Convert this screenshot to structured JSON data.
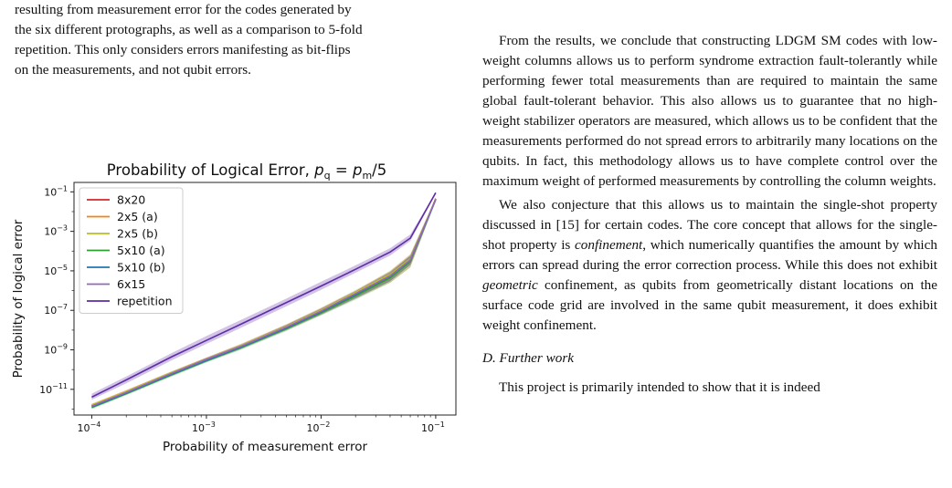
{
  "left_column": {
    "lines": [
      "resulting from measurement error for the codes generated by",
      "the six different protographs, as well as a comparison to 5-fold",
      "repetition. This only considers errors manifesting as bit-flips",
      "on the measurements, and not qubit errors."
    ]
  },
  "right_column": {
    "p1": "From the results, we conclude that constructing LDGM SM codes with low-weight columns allows us to perform syndrome extraction fault-tolerantly while performing fewer total measurements than are required to maintain the same global fault-tolerant behavior. This also allows us to guarantee that no high-weight stabilizer operators are measured, which allows us to be confident that the measurements performed do not spread errors to arbitrarily many locations on the qubits. In fact, this methodology allows us to have complete control over the maximum weight of performed measurements by controlling the column weights.",
    "p2_a": "We also conjecture that this allows us to maintain the single-shot property discussed in [15] for certain codes. The core concept that allows for the single-shot property is ",
    "p2_em1": "confinement",
    "p2_b": ", which numerically quantifies the amount by which errors can spread during the error correction process. While this does not exhibit ",
    "p2_em2": "geometric",
    "p2_c": " confinement, as qubits from geometrically distant locations on the surface code grid are involved in the same qubit measurement, it does exhibit weight confinement.",
    "subsection": "D.  Further work",
    "p3": "This project is primarily intended to show that it is indeed"
  },
  "chart_data": {
    "type": "line",
    "title_prefix": "Probability of Logical Error, ",
    "title_math": "p",
    "title_sub1": "q",
    "title_eq": " = ",
    "title_sub2": "m",
    "title_suffix": "/5",
    "xlabel": "Probability of measurement error",
    "ylabel": "Probability of logical error",
    "xscale": "log",
    "yscale": "log",
    "xlim": [
      7e-05,
      0.15
    ],
    "ylim": [
      5e-13,
      0.3
    ],
    "xticks": [
      {
        "value": 0.0001,
        "base": "10",
        "exp": "−4"
      },
      {
        "value": 0.001,
        "base": "10",
        "exp": "−3"
      },
      {
        "value": 0.01,
        "base": "10",
        "exp": "−2"
      },
      {
        "value": 0.1,
        "base": "10",
        "exp": "−1"
      }
    ],
    "yticks": [
      {
        "value": 1e-11,
        "base": "10",
        "exp": "−11"
      },
      {
        "value": 1e-09,
        "base": "10",
        "exp": "−9"
      },
      {
        "value": 1e-07,
        "base": "10",
        "exp": "−7"
      },
      {
        "value": 1e-05,
        "base": "10",
        "exp": "−5"
      },
      {
        "value": 0.001,
        "base": "10",
        "exp": "−3"
      },
      {
        "value": 0.1,
        "base": "10",
        "exp": "−1"
      }
    ],
    "legend_position": "top-left",
    "x": [
      0.0001,
      0.0002,
      0.0005,
      0.001,
      0.002,
      0.005,
      0.01,
      0.02,
      0.04,
      0.06,
      0.1
    ],
    "series": [
      {
        "name": "8x20",
        "color": "#d62728",
        "values": [
          1.5e-12,
          7e-12,
          6e-11,
          3e-10,
          1.4e-09,
          1.3e-08,
          8e-08,
          6e-07,
          5e-06,
          3e-05,
          0.045
        ],
        "band_low": [
          1.3e-12,
          6e-12,
          5e-11,
          2.5e-10,
          1.1e-09,
          1e-08,
          6e-08,
          4e-07,
          3e-06,
          2e-05,
          0.035
        ],
        "band_high": [
          1.8e-12,
          9e-12,
          8e-11,
          4e-10,
          1.8e-09,
          1.8e-08,
          1.2e-07,
          9e-07,
          8e-06,
          6e-05,
          0.05
        ]
      },
      {
        "name": "2x5 (a)",
        "color": "#ff7f0e",
        "values": [
          1.5e-12,
          7e-12,
          6.5e-11,
          3.2e-10,
          1.5e-09,
          1.4e-08,
          9e-08,
          7e-07,
          6e-06,
          3.5e-05,
          0.042
        ],
        "band_low": [
          1.3e-12,
          6e-12,
          5e-11,
          2.6e-10,
          1.2e-09,
          1e-08,
          6e-08,
          4e-07,
          2.5e-06,
          1.5e-05,
          0.035
        ],
        "band_high": [
          1.8e-12,
          9e-12,
          8e-11,
          4e-10,
          2e-09,
          2e-08,
          1.3e-07,
          1e-06,
          1e-05,
          7e-05,
          0.05
        ]
      },
      {
        "name": "2x5 (b)",
        "color": "#bcbd22",
        "values": [
          1.6e-12,
          7.5e-12,
          7e-11,
          3.4e-10,
          1.6e-09,
          1.5e-08,
          1e-07,
          8e-07,
          6.5e-06,
          4e-05,
          0.043
        ],
        "band_low": [
          1.4e-12,
          6.5e-12,
          5.5e-11,
          2.8e-10,
          1.3e-09,
          1.1e-08,
          7e-08,
          5e-07,
          3e-06,
          2e-05,
          0.036
        ],
        "band_high": [
          1.9e-12,
          9e-12,
          8.5e-11,
          4.2e-10,
          2e-09,
          2e-08,
          1.4e-07,
          1.1e-06,
          1e-05,
          7e-05,
          0.05
        ]
      },
      {
        "name": "5x10 (a)",
        "color": "#2ca02c",
        "values": [
          1.2e-12,
          6e-12,
          5.5e-11,
          2.8e-10,
          1.3e-09,
          1.2e-08,
          7.5e-08,
          5.5e-07,
          4.5e-06,
          3e-05,
          0.04
        ],
        "band_low": [
          1e-12,
          5e-12,
          4.5e-11,
          2.3e-10,
          1e-09,
          9e-09,
          5.5e-08,
          3.5e-07,
          2.5e-06,
          1.5e-05,
          0.034
        ],
        "band_high": [
          1.5e-12,
          7.5e-12,
          7e-11,
          3.5e-10,
          1.7e-09,
          1.7e-08,
          1.1e-07,
          8e-07,
          7.5e-06,
          5.5e-05,
          0.047
        ]
      },
      {
        "name": "5x10 (b)",
        "color": "#1f77b4",
        "values": [
          1.3e-12,
          6.5e-12,
          6e-11,
          3e-10,
          1.4e-09,
          1.3e-08,
          8.5e-08,
          6.5e-07,
          5.5e-06,
          3.5e-05,
          0.041
        ],
        "band_low": [
          1.1e-12,
          5.5e-12,
          5e-11,
          2.4e-10,
          1.1e-09,
          1e-08,
          6e-08,
          4e-07,
          3e-06,
          2e-05,
          0.035
        ],
        "band_high": [
          1.6e-12,
          8e-12,
          7.5e-11,
          3.8e-10,
          1.8e-09,
          1.8e-08,
          1.2e-07,
          9.5e-07,
          9e-06,
          6e-05,
          0.048
        ]
      },
      {
        "name": "6x15",
        "color": "#9467bd",
        "values": [
          1.4e-12,
          7e-12,
          6.5e-11,
          3.3e-10,
          1.5e-09,
          1.4e-08,
          9e-08,
          7e-07,
          5.5e-06,
          3.5e-05,
          0.042
        ],
        "band_low": [
          1.2e-12,
          6e-12,
          5e-11,
          2.6e-10,
          1.2e-09,
          1.1e-08,
          6.5e-08,
          4.5e-07,
          3e-06,
          2e-05,
          0.036
        ],
        "band_high": [
          1.7e-12,
          8.5e-12,
          8e-11,
          4e-10,
          1.9e-09,
          1.9e-08,
          1.3e-07,
          1e-06,
          9e-06,
          6e-05,
          0.048
        ]
      },
      {
        "name": "repetition",
        "color": "#5e2ca5",
        "values": [
          4e-12,
          3e-11,
          4.5e-10,
          3e-09,
          2e-08,
          2.5e-07,
          1.7e-06,
          1.2e-05,
          9e-05,
          0.00045,
          0.09
        ],
        "band_low": [
          3e-12,
          2e-11,
          3e-10,
          2e-09,
          1.3e-08,
          1.6e-07,
          1.1e-06,
          8e-06,
          6e-05,
          0.00032,
          0.085
        ],
        "band_high": [
          6e-12,
          4.5e-11,
          7e-10,
          5e-09,
          3.3e-08,
          4e-07,
          2.8e-06,
          1.9e-05,
          0.00014,
          0.0007,
          0.095
        ]
      }
    ]
  }
}
